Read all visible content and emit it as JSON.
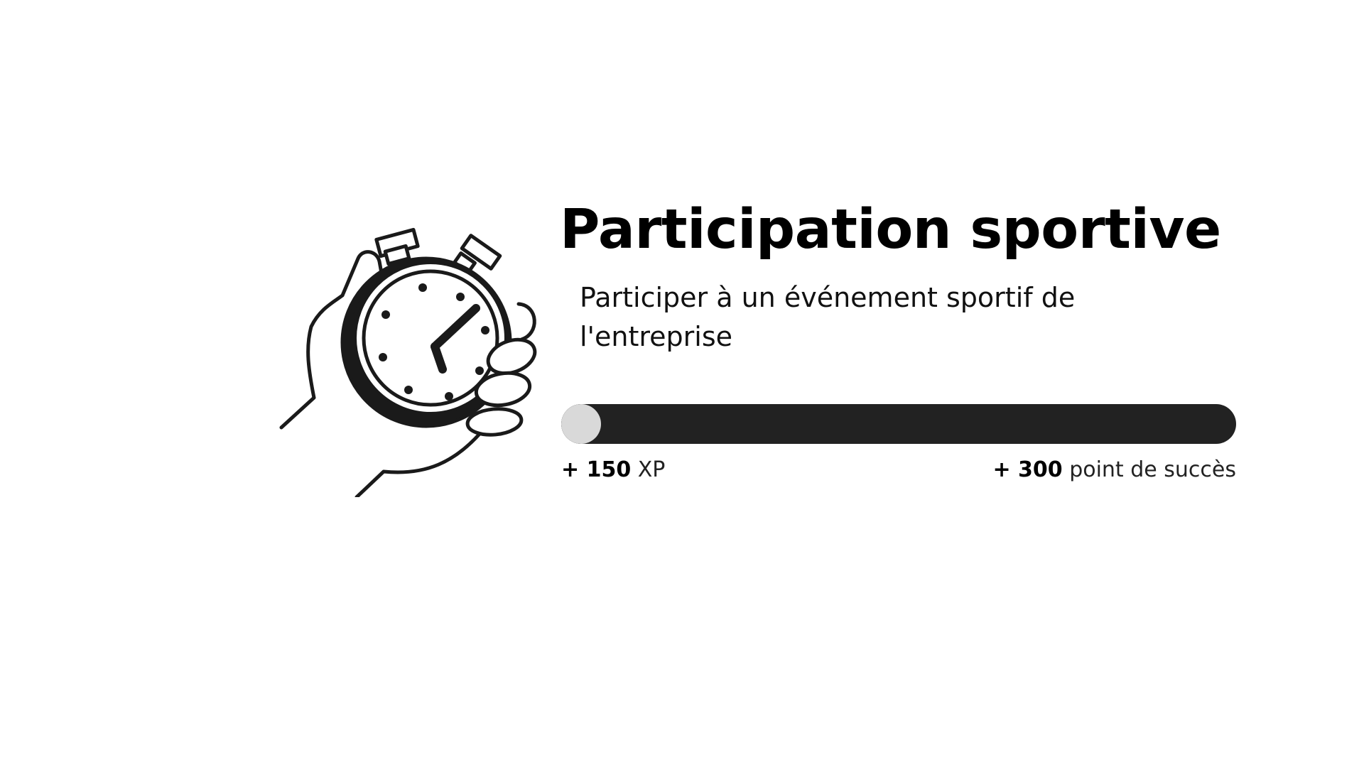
{
  "card": {
    "title": "Participation sportive",
    "description": "Participer à un événement sportif de l'entreprise",
    "icon": "stopwatch-in-hand-icon",
    "progress": 0.02,
    "colors": {
      "track": "#222222",
      "fill": "#d9d9d9",
      "text": "#000000",
      "background": "#ffffff"
    }
  },
  "rewards": {
    "xp": {
      "amount": "+ 150",
      "unit": "XP"
    },
    "success": {
      "amount": "+ 300",
      "unit": "point de succès"
    }
  }
}
